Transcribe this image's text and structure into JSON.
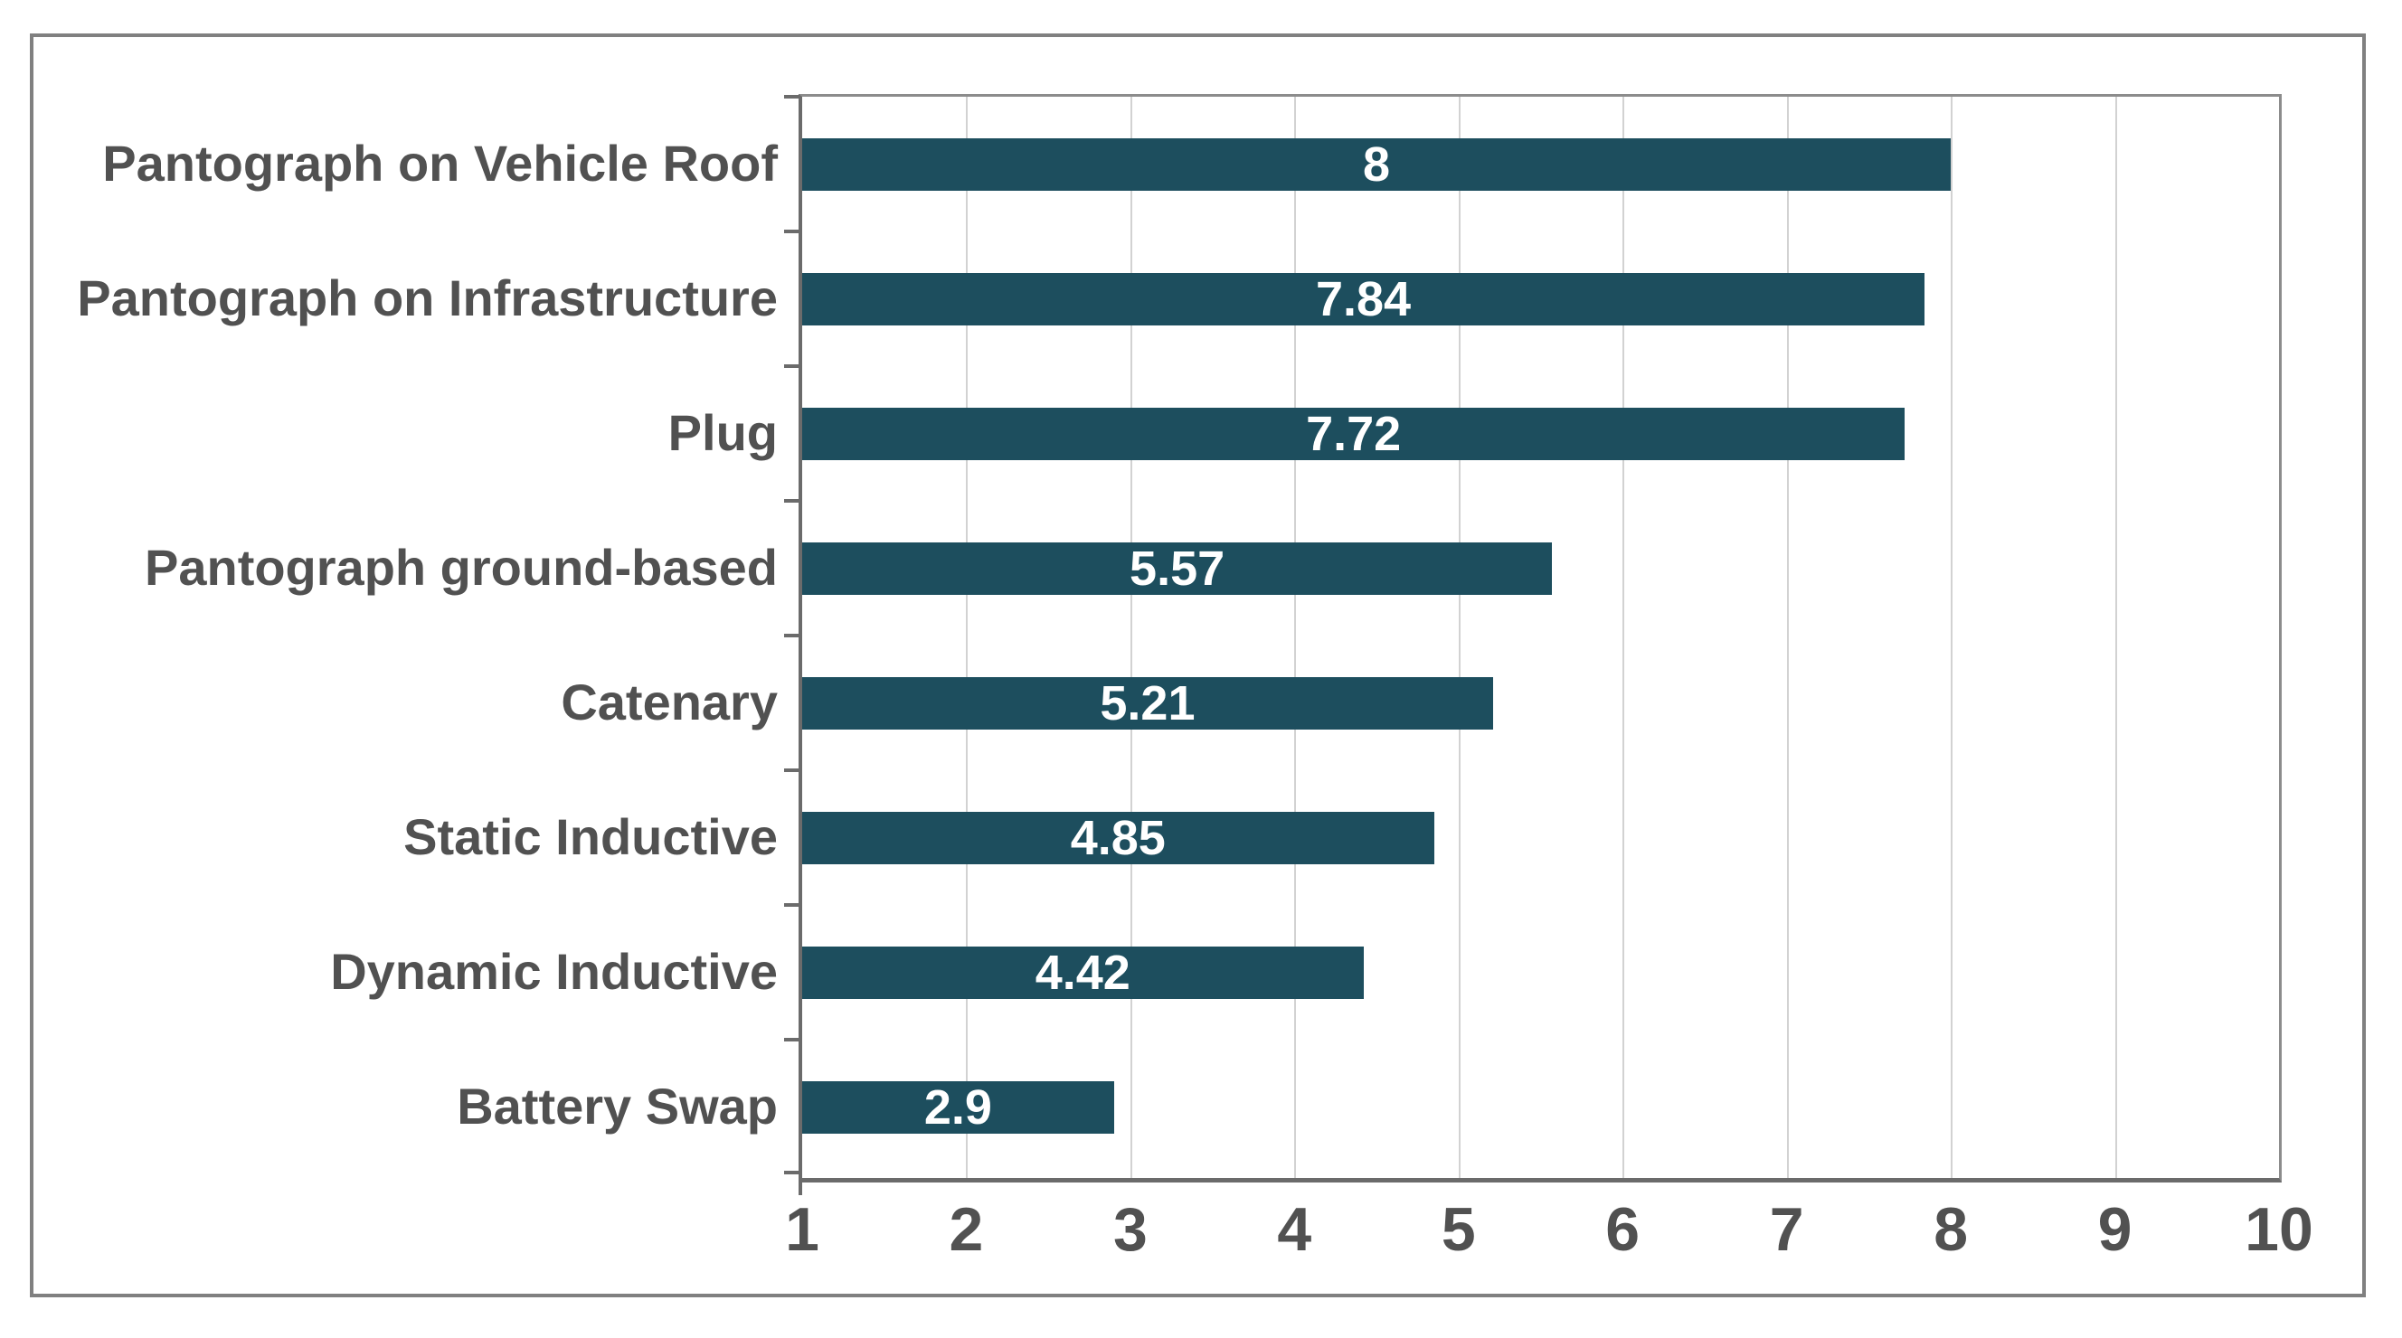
{
  "chart_data": {
    "type": "bar",
    "orientation": "horizontal",
    "title": "",
    "xlabel": "",
    "ylabel": "",
    "categories": [
      "Pantograph on Vehicle Roof",
      "Pantograph on Infrastructure",
      "Plug",
      "Pantograph ground-based",
      "Catenary",
      "Static Inductive",
      "Dynamic Inductive",
      "Battery Swap"
    ],
    "values": [
      8,
      7.84,
      7.72,
      5.57,
      5.21,
      4.85,
      4.42,
      2.9
    ],
    "value_labels": [
      "8",
      "7.84",
      "7.72",
      "5.57",
      "5.21",
      "4.85",
      "4.42",
      "2.9"
    ],
    "xlim": [
      1,
      10
    ],
    "x_ticks": [
      "1",
      "2",
      "3",
      "4",
      "5",
      "6",
      "7",
      "8",
      "9",
      "10"
    ],
    "grid": "vertical-gridlines-on",
    "legend": "none",
    "colors": {
      "bar_fill": "#1D4E5E",
      "value_label_text": "#FFFFFF",
      "axis_text": "#515151",
      "gridline": "#D2D2D2",
      "axis_line": "#6B6B6B",
      "outer_border": "#808080"
    }
  }
}
